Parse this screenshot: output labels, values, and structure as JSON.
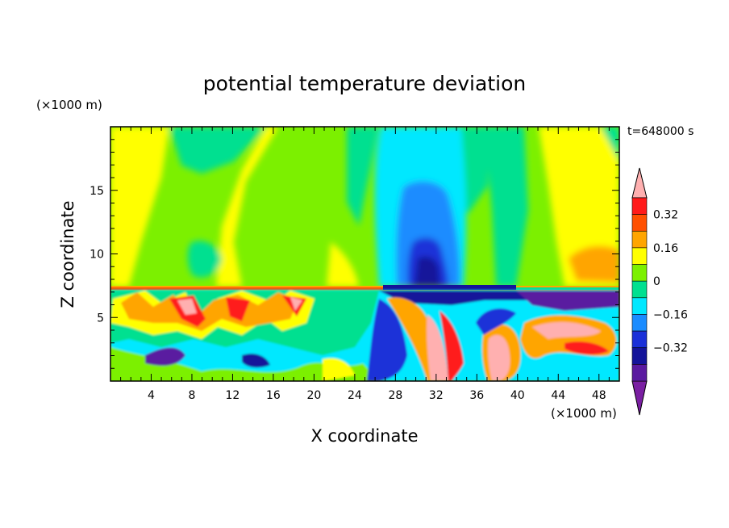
{
  "chart_data": {
    "type": "heatmap",
    "title": "potential temperature deviation",
    "xlabel": "X coordinate",
    "ylabel": "Z coordinate",
    "x_unit": "(×1000 m)",
    "y_unit": "(×1000 m)",
    "time_label": "t=648000 s",
    "xlim": [
      0,
      50
    ],
    "ylim": [
      0,
      20
    ],
    "x_ticks": [
      4,
      8,
      12,
      16,
      20,
      24,
      28,
      32,
      36,
      40,
      44,
      48
    ],
    "y_ticks": [
      5,
      10,
      15
    ],
    "colorbar": {
      "levels": [
        -0.48,
        -0.4,
        -0.32,
        -0.24,
        -0.16,
        -0.08,
        0,
        0.08,
        0.16,
        0.24,
        0.32,
        0.4
      ],
      "tick_values": [
        0.32,
        0.16,
        0,
        -0.16,
        -0.32
      ],
      "tick_labels": [
        "0.32",
        "0.16",
        "0",
        "−0.16",
        "−0.32"
      ],
      "colors": [
        "#7a1fa2",
        "#5a1aa0",
        "#14149a",
        "#1a30d8",
        "#1a8cff",
        "#00e8ff",
        "#00e090",
        "#7cf000",
        "#ffff00",
        "#ffa500",
        "#ff5000",
        "#ff1a1a",
        "#ffb0b0"
      ]
    }
  }
}
